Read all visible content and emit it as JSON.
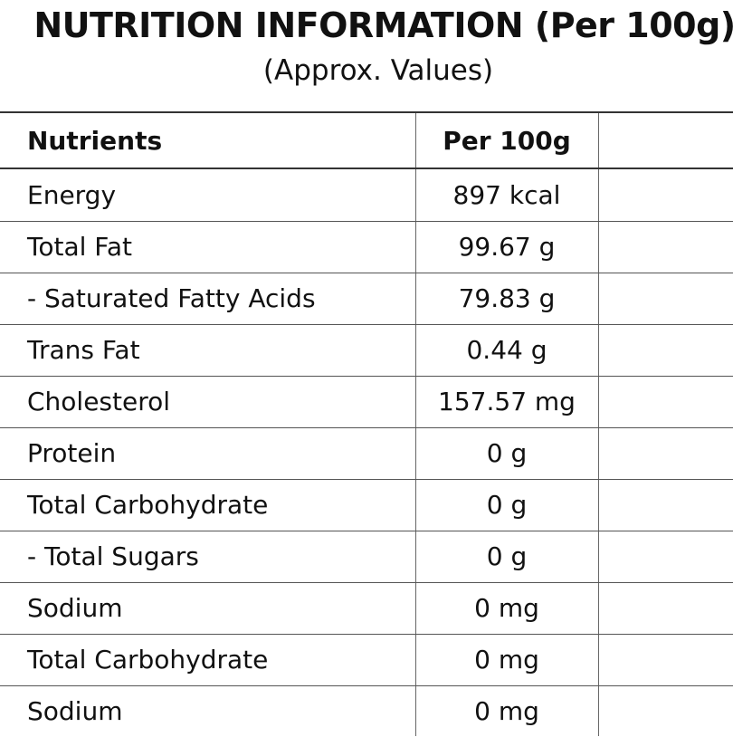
{
  "title": "NUTRITION INFORMATION (Per 100g)",
  "subtitle": "(Approx. Values)",
  "table": {
    "headers": [
      "Nutrients",
      "Per 100g"
    ],
    "rows": [
      {
        "nutrient": "Energy",
        "value": "897 kcal"
      },
      {
        "nutrient": "Total Fat",
        "value": "99.67 g"
      },
      {
        "nutrient": "- Saturated Fatty Acids",
        "value": "79.83 g"
      },
      {
        "nutrient": "Trans Fat",
        "value": "0.44 g"
      },
      {
        "nutrient": "Cholesterol",
        "value": "157.57 mg"
      },
      {
        "nutrient": "Protein",
        "value": "0 g"
      },
      {
        "nutrient": "Total Carbohydrate",
        "value": "0 g"
      },
      {
        "nutrient": "- Total Sugars",
        "value": "0 g"
      },
      {
        "nutrient": "Sodium",
        "value": "0 mg"
      },
      {
        "nutrient": "Total Carbohydrate",
        "value": "0 mg"
      },
      {
        "nutrient": "Sodium",
        "value": "0 mg"
      }
    ]
  }
}
